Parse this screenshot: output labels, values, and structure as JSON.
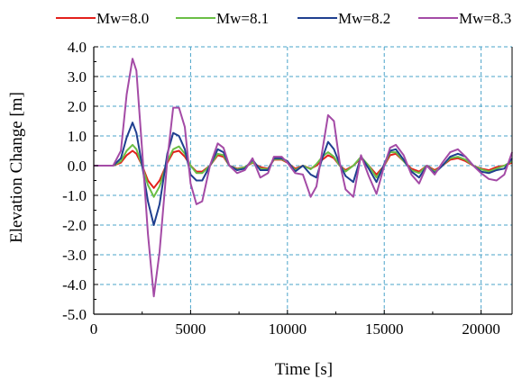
{
  "chart_data": {
    "type": "line",
    "xlabel": "Time [s]",
    "ylabel": "Elevation Change [m]",
    "xlim": [
      0,
      21600
    ],
    "ylim": [
      -5.0,
      4.0
    ],
    "x_ticks": [
      0,
      5000,
      10000,
      15000,
      20000
    ],
    "x_tick_labels": [
      "0",
      "5000",
      "10000",
      "15000",
      "20000"
    ],
    "y_ticks": [
      -5,
      -4,
      -3,
      -2,
      -1,
      0,
      1,
      2,
      3,
      4
    ],
    "y_tick_labels": [
      "-5.0",
      "-4.0",
      "-3.0",
      "-2.0",
      "-1.0",
      "0.0",
      "1.0",
      "2.0",
      "3.0",
      "4.0"
    ],
    "grid": true,
    "legend_position": "top",
    "x": [
      0,
      1000,
      1400,
      1700,
      2000,
      2200,
      2500,
      2800,
      3100,
      3400,
      3800,
      4100,
      4400,
      4700,
      5000,
      5300,
      5600,
      6000,
      6400,
      6700,
      7000,
      7400,
      7800,
      8200,
      8600,
      9000,
      9300,
      9700,
      10000,
      10400,
      10800,
      11200,
      11500,
      11800,
      12100,
      12400,
      12700,
      13000,
      13400,
      13800,
      14200,
      14600,
      15000,
      15300,
      15600,
      16000,
      16400,
      16800,
      17200,
      17600,
      18000,
      18400,
      18800,
      19200,
      19600,
      20000,
      20400,
      20800,
      21200,
      21600
    ],
    "series": [
      {
        "name": "Mw=8.0",
        "color": "#e3201b",
        "values": [
          0.0,
          0.0,
          0.1,
          0.35,
          0.5,
          0.4,
          0.0,
          -0.5,
          -0.75,
          -0.5,
          0.1,
          0.45,
          0.5,
          0.3,
          0.0,
          -0.2,
          -0.2,
          0.0,
          0.35,
          0.3,
          0.0,
          -0.1,
          -0.05,
          0.1,
          -0.05,
          -0.1,
          0.2,
          0.2,
          0.1,
          -0.1,
          0.0,
          -0.1,
          0.0,
          0.2,
          0.35,
          0.25,
          0.0,
          -0.15,
          0.0,
          0.25,
          0.0,
          -0.3,
          0.0,
          0.35,
          0.4,
          0.15,
          -0.1,
          -0.2,
          0.0,
          -0.15,
          0.0,
          0.2,
          0.25,
          0.15,
          0.0,
          -0.1,
          -0.15,
          -0.05,
          0.0,
          0.1
        ]
      },
      {
        "name": "Mw=8.1",
        "color": "#6abe45",
        "values": [
          0.0,
          0.0,
          0.15,
          0.5,
          0.7,
          0.55,
          0.0,
          -0.65,
          -1.05,
          -0.7,
          0.15,
          0.55,
          0.65,
          0.4,
          0.0,
          -0.25,
          -0.25,
          0.0,
          0.4,
          0.35,
          0.0,
          -0.12,
          -0.05,
          0.12,
          -0.1,
          -0.12,
          0.22,
          0.22,
          0.12,
          -0.15,
          0.0,
          -0.12,
          0.05,
          0.3,
          0.45,
          0.3,
          0.0,
          -0.2,
          0.0,
          0.3,
          0.0,
          -0.4,
          0.0,
          0.45,
          0.45,
          0.15,
          -0.15,
          -0.25,
          0.0,
          -0.2,
          0.0,
          0.25,
          0.3,
          0.2,
          0.0,
          -0.12,
          -0.2,
          -0.1,
          0.0,
          0.15
        ]
      },
      {
        "name": "Mw=8.2",
        "color": "#1f3f8f",
        "values": [
          0.0,
          0.0,
          0.25,
          0.95,
          1.45,
          1.1,
          0.0,
          -1.2,
          -2.0,
          -1.3,
          0.4,
          1.1,
          1.0,
          0.55,
          -0.3,
          -0.5,
          -0.5,
          0.0,
          0.55,
          0.45,
          0.0,
          -0.15,
          -0.1,
          0.2,
          -0.15,
          -0.15,
          0.25,
          0.25,
          0.15,
          -0.2,
          0.0,
          -0.3,
          -0.4,
          0.25,
          0.8,
          0.55,
          0.05,
          -0.35,
          -0.55,
          0.3,
          -0.1,
          -0.55,
          0.05,
          0.5,
          0.55,
          0.2,
          -0.2,
          -0.4,
          0.0,
          -0.25,
          0.0,
          0.3,
          0.4,
          0.3,
          0.0,
          -0.2,
          -0.25,
          -0.15,
          -0.1,
          0.25
        ]
      },
      {
        "name": "Mw=8.3",
        "color": "#a44ba6",
        "values": [
          0.0,
          0.0,
          0.5,
          2.4,
          3.6,
          3.2,
          0.5,
          -2.3,
          -4.4,
          -2.9,
          0.2,
          1.95,
          1.95,
          1.3,
          -0.6,
          -1.3,
          -1.2,
          0.0,
          0.75,
          0.6,
          0.0,
          -0.25,
          -0.15,
          0.25,
          -0.4,
          -0.25,
          0.3,
          0.3,
          0.1,
          -0.25,
          -0.3,
          -1.05,
          -0.7,
          0.5,
          1.7,
          1.5,
          0.1,
          -0.8,
          -1.05,
          0.35,
          -0.35,
          -0.95,
          0.0,
          0.6,
          0.7,
          0.35,
          -0.3,
          -0.6,
          0.0,
          -0.3,
          0.1,
          0.45,
          0.55,
          0.3,
          0.0,
          -0.25,
          -0.45,
          -0.5,
          -0.3,
          0.45
        ]
      }
    ]
  }
}
